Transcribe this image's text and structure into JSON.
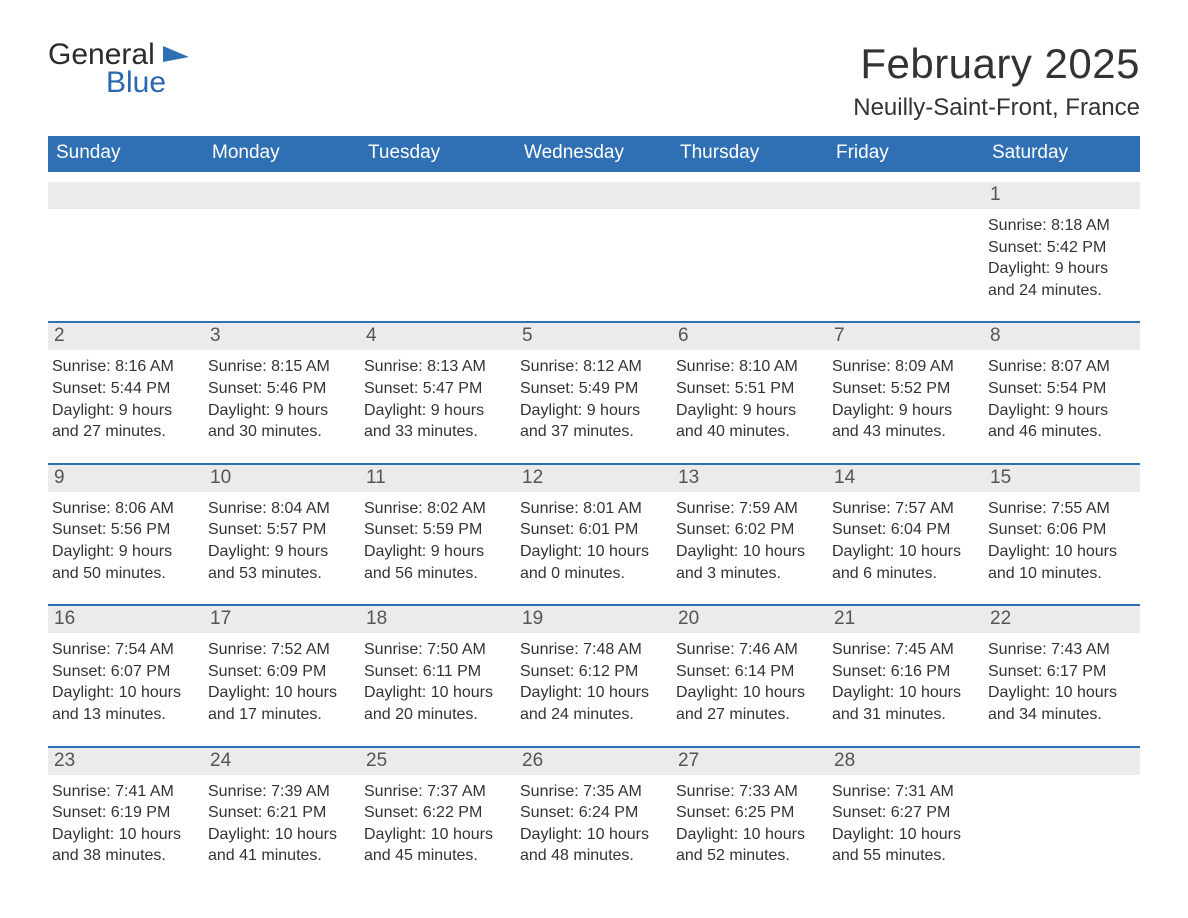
{
  "logo": {
    "text1": "General",
    "text2": "Blue",
    "color_dark": "#2b2b2b",
    "color_blue": "#2968b0"
  },
  "title": "February 2025",
  "location": "Neuilly-Saint-Front, France",
  "colors": {
    "header_bg": "#2f6fb3",
    "header_text": "#ffffff",
    "daynum_bg": "#ebebeb",
    "daynum_border": "#2f6fb3",
    "body_text": "#333333",
    "daynum_text": "#555555",
    "page_bg": "#ffffff"
  },
  "typography": {
    "title_fontsize": 42,
    "location_fontsize": 24,
    "dayheader_fontsize": 19,
    "daynum_fontsize": 19,
    "info_fontsize": 16
  },
  "day_names": [
    "Sunday",
    "Monday",
    "Tuesday",
    "Wednesday",
    "Thursday",
    "Friday",
    "Saturday"
  ],
  "weeks": [
    [
      null,
      null,
      null,
      null,
      null,
      null,
      {
        "n": "1",
        "sunrise": "8:18 AM",
        "sunset": "5:42 PM",
        "daylight": "9 hours and 24 minutes."
      }
    ],
    [
      {
        "n": "2",
        "sunrise": "8:16 AM",
        "sunset": "5:44 PM",
        "daylight": "9 hours and 27 minutes."
      },
      {
        "n": "3",
        "sunrise": "8:15 AM",
        "sunset": "5:46 PM",
        "daylight": "9 hours and 30 minutes."
      },
      {
        "n": "4",
        "sunrise": "8:13 AM",
        "sunset": "5:47 PM",
        "daylight": "9 hours and 33 minutes."
      },
      {
        "n": "5",
        "sunrise": "8:12 AM",
        "sunset": "5:49 PM",
        "daylight": "9 hours and 37 minutes."
      },
      {
        "n": "6",
        "sunrise": "8:10 AM",
        "sunset": "5:51 PM",
        "daylight": "9 hours and 40 minutes."
      },
      {
        "n": "7",
        "sunrise": "8:09 AM",
        "sunset": "5:52 PM",
        "daylight": "9 hours and 43 minutes."
      },
      {
        "n": "8",
        "sunrise": "8:07 AM",
        "sunset": "5:54 PM",
        "daylight": "9 hours and 46 minutes."
      }
    ],
    [
      {
        "n": "9",
        "sunrise": "8:06 AM",
        "sunset": "5:56 PM",
        "daylight": "9 hours and 50 minutes."
      },
      {
        "n": "10",
        "sunrise": "8:04 AM",
        "sunset": "5:57 PM",
        "daylight": "9 hours and 53 minutes."
      },
      {
        "n": "11",
        "sunrise": "8:02 AM",
        "sunset": "5:59 PM",
        "daylight": "9 hours and 56 minutes."
      },
      {
        "n": "12",
        "sunrise": "8:01 AM",
        "sunset": "6:01 PM",
        "daylight": "10 hours and 0 minutes."
      },
      {
        "n": "13",
        "sunrise": "7:59 AM",
        "sunset": "6:02 PM",
        "daylight": "10 hours and 3 minutes."
      },
      {
        "n": "14",
        "sunrise": "7:57 AM",
        "sunset": "6:04 PM",
        "daylight": "10 hours and 6 minutes."
      },
      {
        "n": "15",
        "sunrise": "7:55 AM",
        "sunset": "6:06 PM",
        "daylight": "10 hours and 10 minutes."
      }
    ],
    [
      {
        "n": "16",
        "sunrise": "7:54 AM",
        "sunset": "6:07 PM",
        "daylight": "10 hours and 13 minutes."
      },
      {
        "n": "17",
        "sunrise": "7:52 AM",
        "sunset": "6:09 PM",
        "daylight": "10 hours and 17 minutes."
      },
      {
        "n": "18",
        "sunrise": "7:50 AM",
        "sunset": "6:11 PM",
        "daylight": "10 hours and 20 minutes."
      },
      {
        "n": "19",
        "sunrise": "7:48 AM",
        "sunset": "6:12 PM",
        "daylight": "10 hours and 24 minutes."
      },
      {
        "n": "20",
        "sunrise": "7:46 AM",
        "sunset": "6:14 PM",
        "daylight": "10 hours and 27 minutes."
      },
      {
        "n": "21",
        "sunrise": "7:45 AM",
        "sunset": "6:16 PM",
        "daylight": "10 hours and 31 minutes."
      },
      {
        "n": "22",
        "sunrise": "7:43 AM",
        "sunset": "6:17 PM",
        "daylight": "10 hours and 34 minutes."
      }
    ],
    [
      {
        "n": "23",
        "sunrise": "7:41 AM",
        "sunset": "6:19 PM",
        "daylight": "10 hours and 38 minutes."
      },
      {
        "n": "24",
        "sunrise": "7:39 AM",
        "sunset": "6:21 PM",
        "daylight": "10 hours and 41 minutes."
      },
      {
        "n": "25",
        "sunrise": "7:37 AM",
        "sunset": "6:22 PM",
        "daylight": "10 hours and 45 minutes."
      },
      {
        "n": "26",
        "sunrise": "7:35 AM",
        "sunset": "6:24 PM",
        "daylight": "10 hours and 48 minutes."
      },
      {
        "n": "27",
        "sunrise": "7:33 AM",
        "sunset": "6:25 PM",
        "daylight": "10 hours and 52 minutes."
      },
      {
        "n": "28",
        "sunrise": "7:31 AM",
        "sunset": "6:27 PM",
        "daylight": "10 hours and 55 minutes."
      },
      null
    ]
  ],
  "labels": {
    "sunrise": "Sunrise:",
    "sunset": "Sunset:",
    "daylight": "Daylight:"
  }
}
